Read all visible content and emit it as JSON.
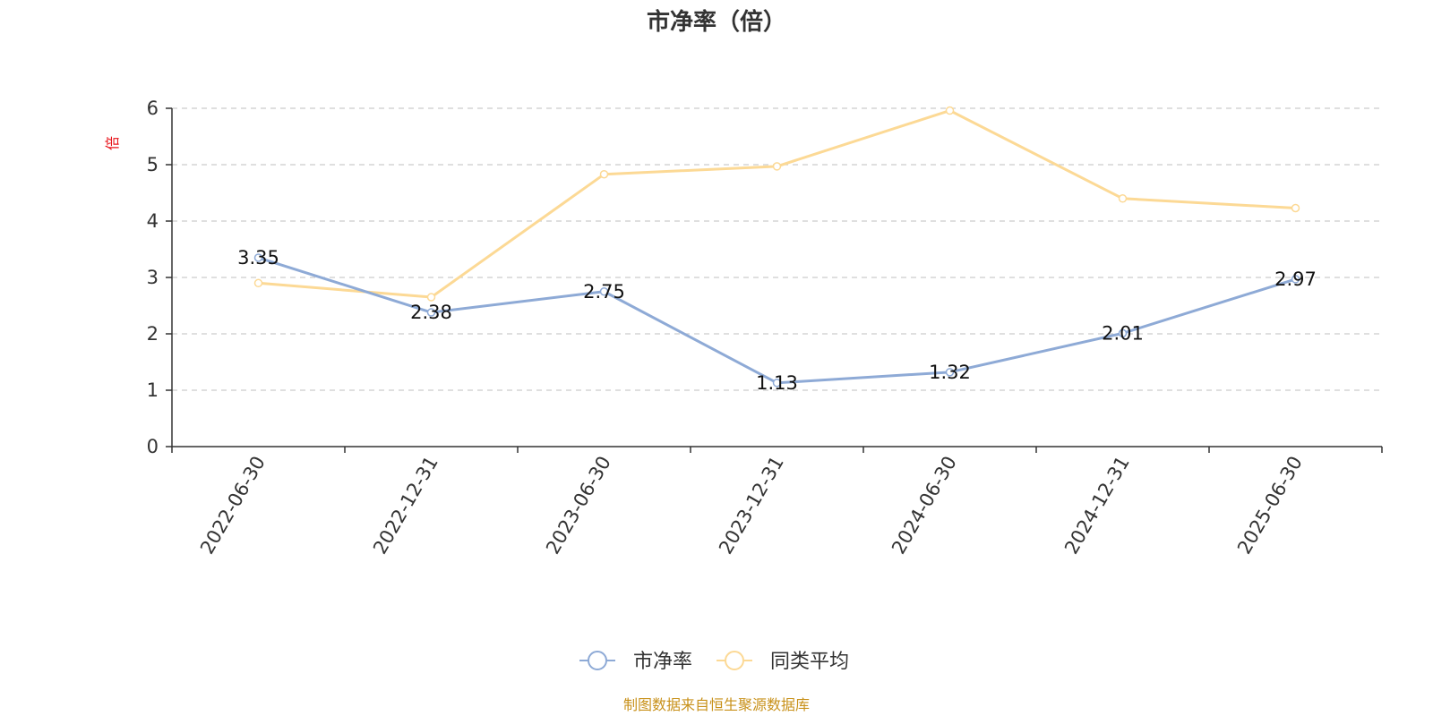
{
  "chart_data": {
    "type": "line",
    "title": "市净率（倍）",
    "ylabel": "倍",
    "xlabel": "",
    "categories": [
      "2022-06-30",
      "2022-12-31",
      "2023-06-30",
      "2023-12-31",
      "2024-06-30",
      "2024-12-31",
      "2025-06-30"
    ],
    "ylim": [
      0,
      6
    ],
    "yticks": [
      0,
      1,
      2,
      3,
      4,
      5,
      6
    ],
    "grid": true,
    "legend_position": "bottom-center",
    "series": [
      {
        "name": "市净率",
        "values": [
          3.35,
          2.38,
          2.75,
          1.13,
          1.32,
          2.01,
          2.97
        ],
        "labels": [
          "3.35",
          "2.38",
          "2.75",
          "1.13",
          "1.32",
          "2.01",
          "2.97"
        ],
        "color": "#8eaad6"
      },
      {
        "name": "同类平均",
        "values": [
          2.9,
          2.65,
          4.83,
          4.97,
          5.96,
          4.4,
          4.23
        ],
        "color": "#fcd995"
      }
    ],
    "source": "制图数据来自恒生聚源数据库"
  }
}
